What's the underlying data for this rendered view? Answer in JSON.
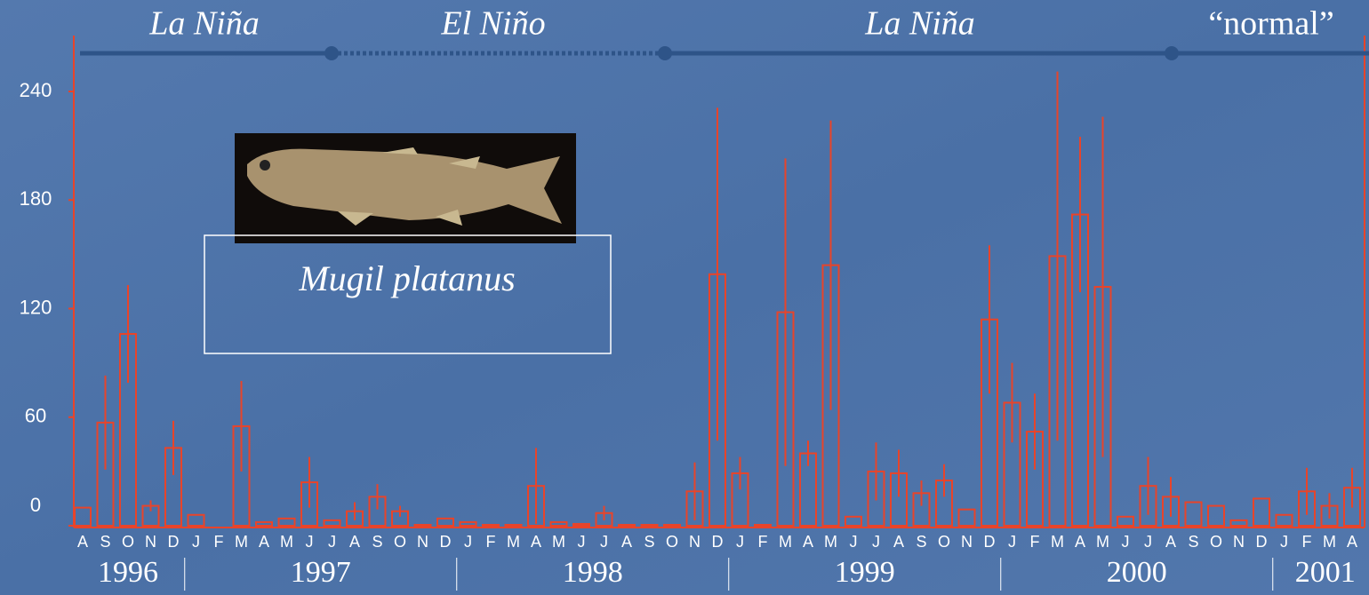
{
  "chart_data": {
    "type": "bar",
    "caption": "Mugil platanus",
    "phases": [
      "La Niña",
      "El Niño",
      "La Niña",
      "“normal”"
    ],
    "years": [
      "1996",
      "1997",
      "1998",
      "1999",
      "2000",
      "2001"
    ],
    "categories": [
      "A",
      "S",
      "O",
      "N",
      "D",
      "J",
      "F",
      "M",
      "A",
      "M",
      "J",
      "J",
      "A",
      "S",
      "O",
      "N",
      "D",
      "J",
      "F",
      "M",
      "A",
      "M",
      "J",
      "J",
      "A",
      "S",
      "O",
      "N",
      "D",
      "J",
      "F",
      "M",
      "A",
      "M",
      "J",
      "J",
      "A",
      "S",
      "O",
      "N",
      "D",
      "J",
      "F",
      "M",
      "A",
      "M",
      "J",
      "J",
      "A",
      "S",
      "O",
      "N",
      "D",
      "J",
      "F",
      "M",
      "A"
    ],
    "values": [
      10,
      57,
      106,
      11,
      43,
      6,
      0,
      55,
      2,
      4,
      24,
      3,
      8,
      16,
      8,
      0.5,
      4,
      2,
      0.5,
      0.5,
      22,
      2,
      1,
      7,
      0.5,
      0.5,
      0.5,
      19,
      139,
      29,
      0.5,
      118,
      40,
      144,
      5,
      30,
      29,
      18,
      25,
      9,
      114,
      68,
      52,
      149,
      172,
      132,
      5,
      22,
      16,
      13,
      11,
      3,
      15,
      6,
      19,
      11,
      21
    ],
    "errors": [
      0,
      26,
      27,
      3,
      15,
      0,
      0,
      25,
      0,
      0,
      14,
      0,
      5,
      7,
      3,
      0,
      0,
      0,
      0,
      0,
      21,
      0,
      0,
      4,
      0,
      0,
      0,
      16,
      92,
      9,
      0,
      85,
      7,
      80,
      0,
      16,
      13,
      7,
      9,
      0,
      41,
      22,
      21,
      102,
      43,
      94,
      0,
      16,
      11,
      0,
      0,
      0,
      0,
      0,
      13,
      7,
      11
    ],
    "color": "#e8442a",
    "ylim": [
      0,
      270
    ],
    "yticks": [
      0,
      60,
      120,
      180,
      240
    ]
  }
}
